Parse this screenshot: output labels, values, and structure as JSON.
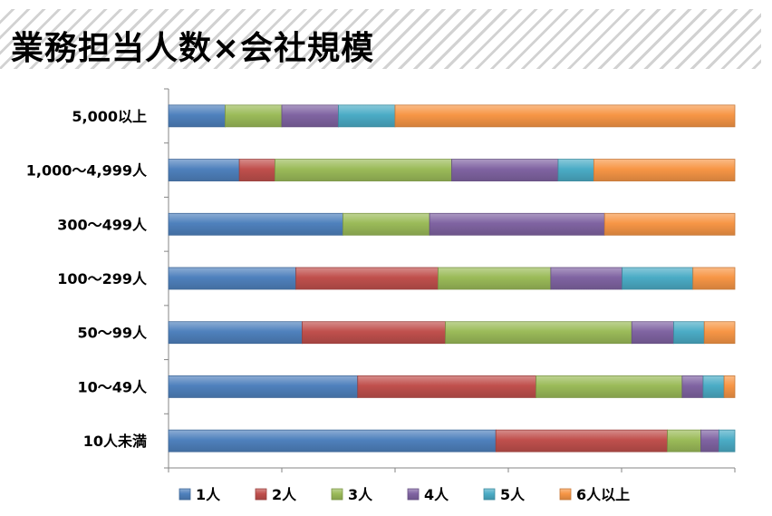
{
  "title": "業務担当人数×会社規模",
  "colors": {
    "1人": "#4f81bd",
    "2人": "#c0504d",
    "3人": "#9bbb59",
    "4人": "#8064a2",
    "5人": "#4bacc6",
    "6人以上": "#f79646"
  },
  "chart_data": {
    "type": "bar",
    "orientation": "horizontal",
    "stacked": "100%",
    "categories": [
      "5,000以上",
      "1,000～4,999人",
      "300～499人",
      "100～299人",
      "50～99人",
      "10～49人",
      "10人未満"
    ],
    "series": [
      {
        "name": "1人",
        "values": [
          10,
          12.5,
          30.8,
          22.5,
          23.6,
          33.4,
          57.8
        ]
      },
      {
        "name": "2人",
        "values": [
          0,
          6.3,
          0,
          25.1,
          25.3,
          31.5,
          30.3
        ]
      },
      {
        "name": "3人",
        "values": [
          10,
          31.2,
          15.3,
          19.9,
          32.9,
          25.8,
          5.9
        ]
      },
      {
        "name": "4人",
        "values": [
          10,
          18.8,
          30.9,
          12.6,
          7.4,
          3.7,
          3.2
        ]
      },
      {
        "name": "5人",
        "values": [
          10,
          6.3,
          0,
          12.5,
          5.4,
          3.7,
          2.8
        ]
      },
      {
        "name": "6人以上",
        "values": [
          60,
          24.9,
          23.0,
          7.4,
          5.4,
          1.9,
          0
        ]
      }
    ],
    "xlim": [
      0,
      100
    ],
    "grid": false,
    "legend": "bottom"
  }
}
